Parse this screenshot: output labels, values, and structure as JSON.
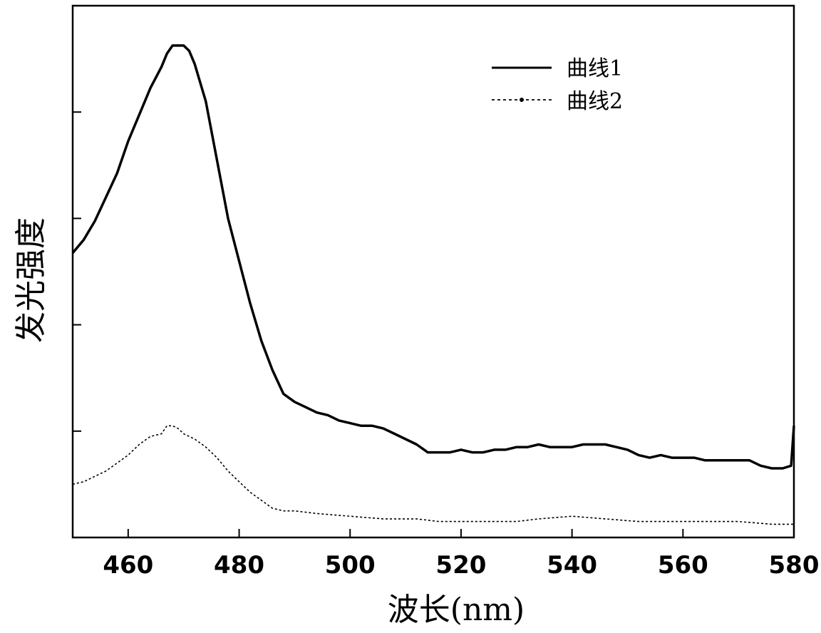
{
  "chart_data": {
    "type": "line",
    "xlabel": "波长(nm)",
    "ylabel": "发光强度",
    "xlim": [
      450,
      580
    ],
    "ylim": [
      0,
      100
    ],
    "x_ticks": [
      460,
      480,
      500,
      520,
      540,
      560,
      580
    ],
    "y_ticks": [
      20,
      40,
      60,
      80,
      100
    ],
    "y_tick_labels_shown": false,
    "grid": false,
    "legend_position": "top-right",
    "series": [
      {
        "name": "曲线1",
        "style": "solid",
        "color": "#000000",
        "points": [
          [
            450,
            53.5
          ],
          [
            452,
            56
          ],
          [
            454,
            59.5
          ],
          [
            456,
            64
          ],
          [
            458,
            68.5
          ],
          [
            460,
            74.5
          ],
          [
            462,
            79.5
          ],
          [
            464,
            84.5
          ],
          [
            466,
            88.5
          ],
          [
            467,
            91
          ],
          [
            468,
            92.5
          ],
          [
            469,
            92.5
          ],
          [
            470,
            92.5
          ],
          [
            471,
            91.5
          ],
          [
            472,
            89
          ],
          [
            474,
            82
          ],
          [
            476,
            71
          ],
          [
            478,
            60
          ],
          [
            480,
            52
          ],
          [
            482,
            44
          ],
          [
            484,
            37
          ],
          [
            486,
            31.5
          ],
          [
            488,
            27
          ],
          [
            490,
            25.5
          ],
          [
            492,
            24.5
          ],
          [
            494,
            23.5
          ],
          [
            496,
            23
          ],
          [
            498,
            22
          ],
          [
            500,
            21.5
          ],
          [
            502,
            21
          ],
          [
            504,
            21
          ],
          [
            506,
            20.5
          ],
          [
            508,
            19.5
          ],
          [
            510,
            18.5
          ],
          [
            512,
            17.5
          ],
          [
            514,
            16
          ],
          [
            516,
            16
          ],
          [
            518,
            16
          ],
          [
            520,
            16.5
          ],
          [
            522,
            16
          ],
          [
            524,
            16
          ],
          [
            526,
            16.5
          ],
          [
            528,
            16.5
          ],
          [
            530,
            17
          ],
          [
            532,
            17
          ],
          [
            534,
            17.5
          ],
          [
            536,
            17
          ],
          [
            538,
            17
          ],
          [
            540,
            17
          ],
          [
            542,
            17.5
          ],
          [
            544,
            17.5
          ],
          [
            546,
            17.5
          ],
          [
            548,
            17
          ],
          [
            550,
            16.5
          ],
          [
            552,
            15.5
          ],
          [
            554,
            15
          ],
          [
            556,
            15.5
          ],
          [
            558,
            15
          ],
          [
            560,
            15
          ],
          [
            562,
            15
          ],
          [
            564,
            14.5
          ],
          [
            566,
            14.5
          ],
          [
            568,
            14.5
          ],
          [
            570,
            14.5
          ],
          [
            572,
            14.5
          ],
          [
            574,
            13.5
          ],
          [
            576,
            13
          ],
          [
            578,
            13
          ],
          [
            579.5,
            13.5
          ],
          [
            580,
            21
          ]
        ]
      },
      {
        "name": "曲线2",
        "style": "dotted",
        "color": "#000000",
        "points": [
          [
            450,
            10
          ],
          [
            452,
            10.5
          ],
          [
            454,
            11.5
          ],
          [
            456,
            12.5
          ],
          [
            458,
            14
          ],
          [
            460,
            15.5
          ],
          [
            462,
            17.5
          ],
          [
            464,
            19
          ],
          [
            466,
            19.5
          ],
          [
            467,
            21
          ],
          [
            468,
            21
          ],
          [
            469,
            20.5
          ],
          [
            470,
            19.5
          ],
          [
            472,
            18.5
          ],
          [
            474,
            17
          ],
          [
            476,
            15
          ],
          [
            478,
            12.5
          ],
          [
            480,
            10.5
          ],
          [
            482,
            8.5
          ],
          [
            484,
            7
          ],
          [
            486,
            5.5
          ],
          [
            488,
            5
          ],
          [
            490,
            5
          ],
          [
            494,
            4.5
          ],
          [
            500,
            4
          ],
          [
            506,
            3.5
          ],
          [
            512,
            3.5
          ],
          [
            516,
            3
          ],
          [
            520,
            3
          ],
          [
            530,
            3
          ],
          [
            534,
            3.5
          ],
          [
            540,
            4
          ],
          [
            546,
            3.5
          ],
          [
            552,
            3
          ],
          [
            560,
            3
          ],
          [
            570,
            3
          ],
          [
            576,
            2.5
          ],
          [
            580,
            2.5
          ]
        ]
      }
    ]
  }
}
